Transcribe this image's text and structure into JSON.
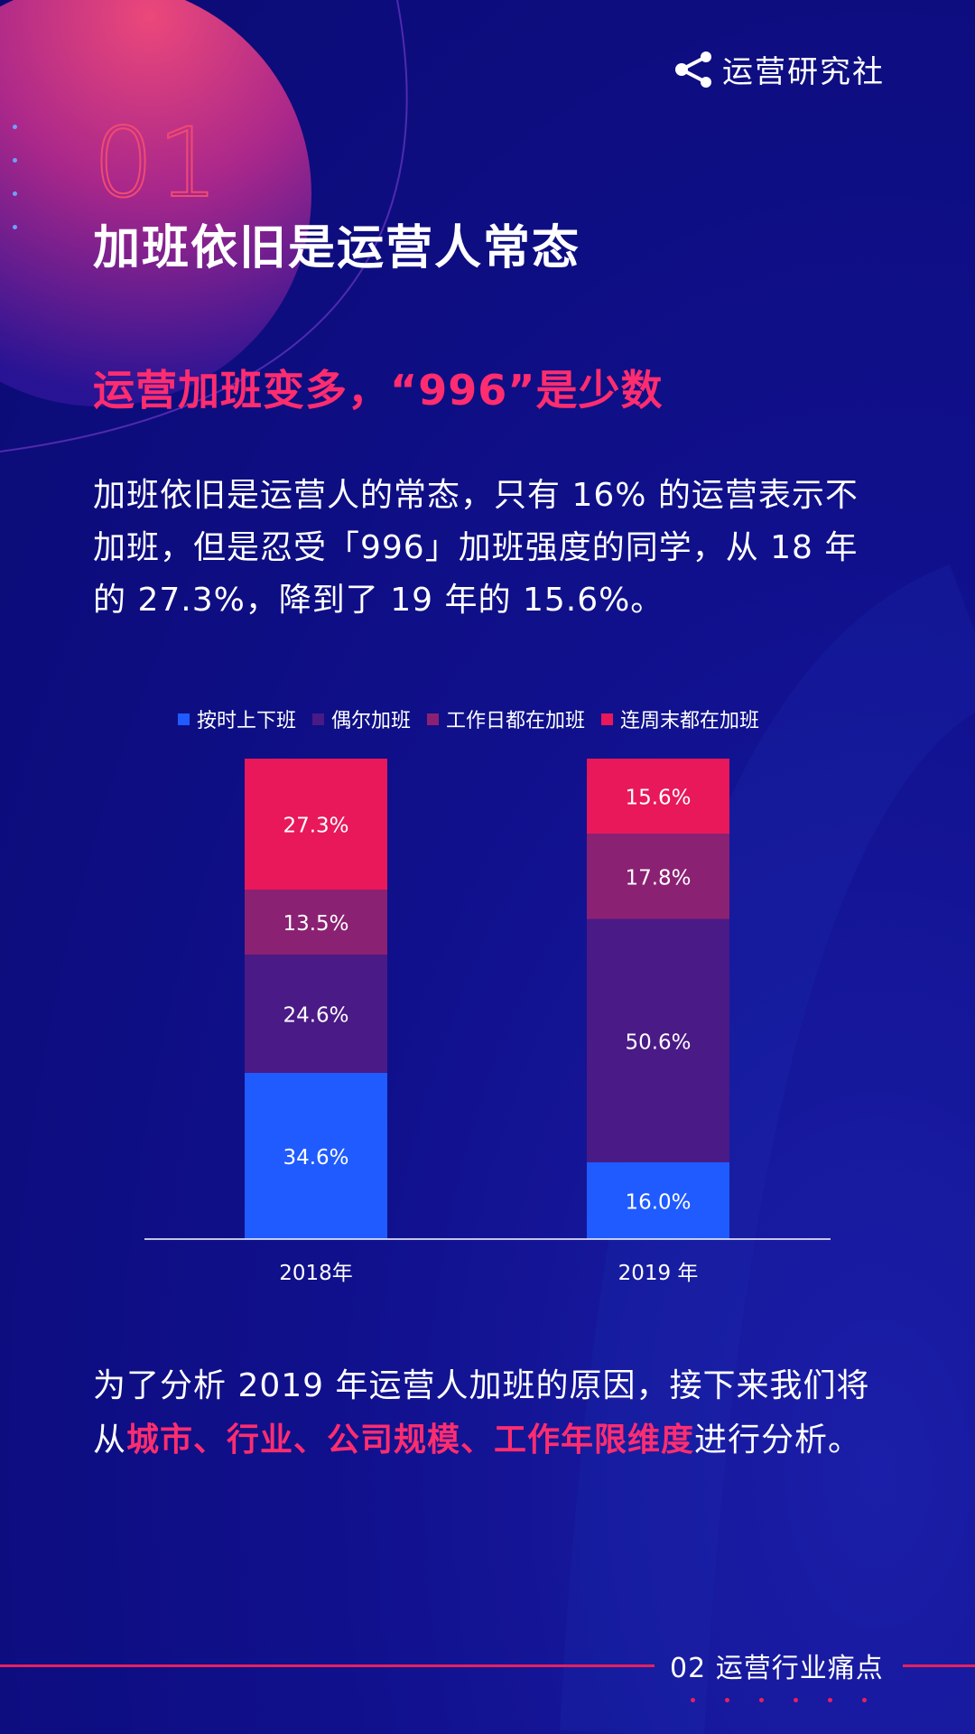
{
  "brand": {
    "name": "运营研究社"
  },
  "section": {
    "number": "01",
    "title": "加班依旧是运营人常态"
  },
  "subtitle": "运营加班变多，“996”是少数",
  "intro": "加班依旧是运营人的常态，只有 16% 的运营表示不加班，但是忍受「996」加班强度的同学，从 18 年的 27.3%，降到了 19 年的 15.6%。",
  "colors": {
    "accent": "#ff2d6f",
    "background": "#0b0a73"
  },
  "chart_data": {
    "type": "bar",
    "stacked": true,
    "categories": [
      "2018年",
      "2019 年"
    ],
    "series": [
      {
        "name": "按时上下班",
        "color": "#1f5bff",
        "values": [
          34.6,
          16.0
        ],
        "labels": [
          "34.6%",
          "16.0%"
        ]
      },
      {
        "name": "偶尔加班",
        "color": "#4a1a86",
        "values": [
          24.6,
          50.6
        ],
        "labels": [
          "24.6%",
          "50.6%"
        ]
      },
      {
        "name": "工作日都在加班",
        "color": "#8b2173",
        "values": [
          13.5,
          17.8
        ],
        "labels": [
          "13.5%",
          "17.8%"
        ]
      },
      {
        "name": "连周末都在加班",
        "color": "#e8185a",
        "values": [
          27.3,
          15.6
        ],
        "labels": [
          "27.3%",
          "15.6%"
        ]
      }
    ],
    "legend_position": "top",
    "grid": false
  },
  "footer": {
    "text_before": "为了分析 2019 年运营人加班的原因，接下来我们将从",
    "highlight": "城市、行业、公司规模、工作年限维度",
    "text_after": "进行分析。",
    "section_label": "02 运营行业痛点"
  }
}
